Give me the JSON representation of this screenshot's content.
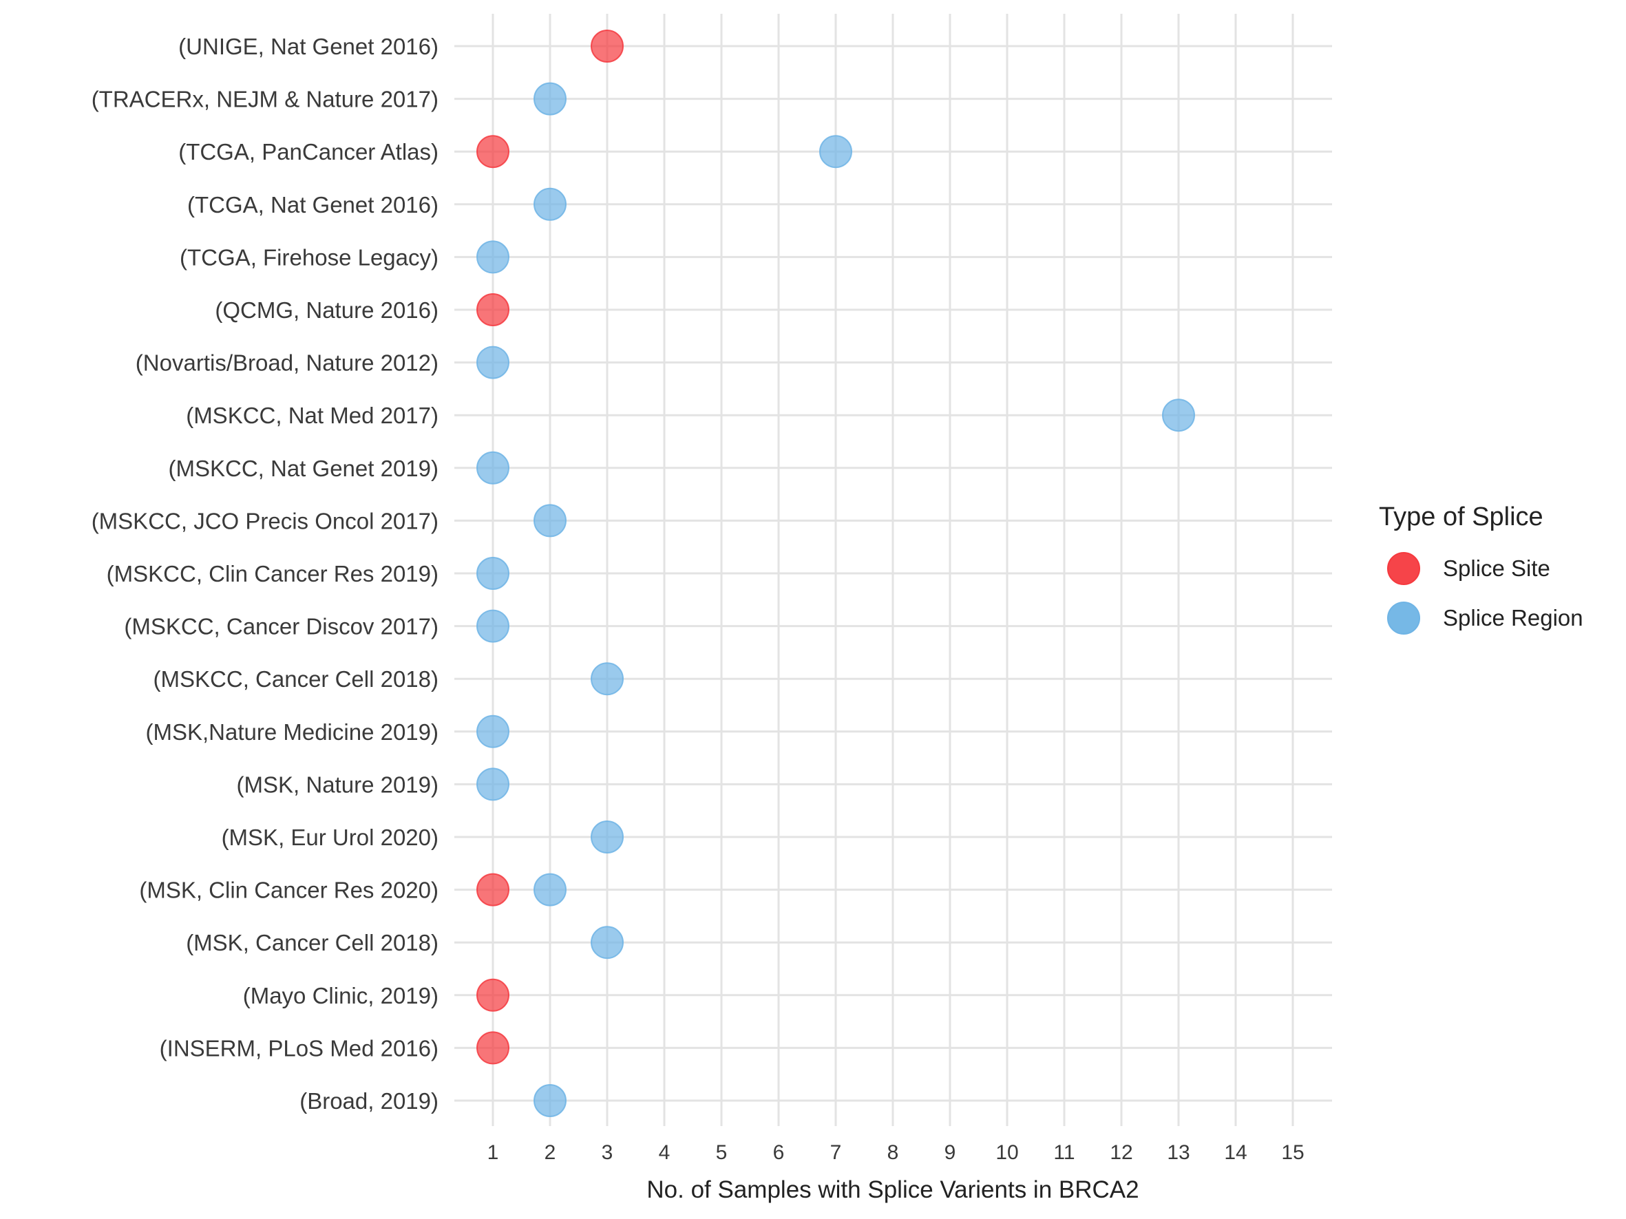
{
  "chart_data": {
    "type": "scatter",
    "xlabel": "No. of Samples with Splice Varients in BRCA2",
    "xlim": [
      0.4,
      15.7
    ],
    "xticks": [
      1,
      2,
      3,
      4,
      5,
      6,
      7,
      8,
      9,
      10,
      11,
      12,
      13,
      14,
      15
    ],
    "grid": true,
    "legend": {
      "title": "Type of Splice",
      "placement": "right",
      "entries": [
        {
          "name": "Splice Site",
          "color": "#f53a3f"
        },
        {
          "name": "Splice Region",
          "color": "#6fb4e5"
        }
      ]
    },
    "categories": [
      "(UNIGE, Nat Genet 2016)",
      "(TRACERx, NEJM & Nature 2017)",
      "(TCGA, PanCancer Atlas)",
      "(TCGA, Nat Genet 2016)",
      "(TCGA, Firehose Legacy)",
      "(QCMG, Nature 2016)",
      "(Novartis/Broad, Nature 2012)",
      "(MSKCC, Nat Med 2017)",
      "(MSKCC, Nat Genet 2019)",
      "(MSKCC, JCO Precis Oncol 2017)",
      "(MSKCC, Clin Cancer Res 2019)",
      "(MSKCC, Cancer Discov 2017)",
      "(MSKCC, Cancer Cell 2018)",
      "(MSK,Nature Medicine 2019)",
      "(MSK, Nature 2019)",
      "(MSK, Eur Urol 2020)",
      "(MSK, Clin Cancer Res 2020)",
      "(MSK, Cancer Cell 2018)",
      "(Mayo Clinic, 2019)",
      "(INSERM, PLoS Med 2016)",
      "(Broad, 2019)"
    ],
    "series": [
      {
        "name": "Splice Site",
        "color": "#f53a3f",
        "points": [
          {
            "study": "(UNIGE, Nat Genet 2016)",
            "value": 3
          },
          {
            "study": "(TCGA, PanCancer Atlas)",
            "value": 1
          },
          {
            "study": "(QCMG, Nature 2016)",
            "value": 1
          },
          {
            "study": "(MSK, Clin Cancer Res 2020)",
            "value": 1
          },
          {
            "study": "(Mayo Clinic, 2019)",
            "value": 1
          },
          {
            "study": "(INSERM, PLoS Med 2016)",
            "value": 1
          }
        ]
      },
      {
        "name": "Splice Region",
        "color": "#6fb4e5",
        "points": [
          {
            "study": "(TRACERx, NEJM & Nature 2017)",
            "value": 2
          },
          {
            "study": "(TCGA, PanCancer Atlas)",
            "value": 7
          },
          {
            "study": "(TCGA, Nat Genet 2016)",
            "value": 2
          },
          {
            "study": "(TCGA, Firehose Legacy)",
            "value": 1
          },
          {
            "study": "(Novartis/Broad, Nature 2012)",
            "value": 1
          },
          {
            "study": "(MSKCC, Nat Med 2017)",
            "value": 13
          },
          {
            "study": "(MSKCC, Nat Genet 2019)",
            "value": 1
          },
          {
            "study": "(MSKCC, JCO Precis Oncol 2017)",
            "value": 2
          },
          {
            "study": "(MSKCC, Clin Cancer Res 2019)",
            "value": 1
          },
          {
            "study": "(MSKCC, Cancer Discov 2017)",
            "value": 1
          },
          {
            "study": "(MSKCC, Cancer Cell 2018)",
            "value": 3
          },
          {
            "study": "(MSK,Nature Medicine 2019)",
            "value": 1
          },
          {
            "study": "(MSK, Nature 2019)",
            "value": 1
          },
          {
            "study": "(MSK, Eur Urol 2020)",
            "value": 3
          },
          {
            "study": "(MSK, Clin Cancer Res 2020)",
            "value": 2
          },
          {
            "study": "(MSK, Cancer Cell 2018)",
            "value": 3
          },
          {
            "study": "(Broad, 2019)",
            "value": 2
          }
        ]
      }
    ]
  }
}
